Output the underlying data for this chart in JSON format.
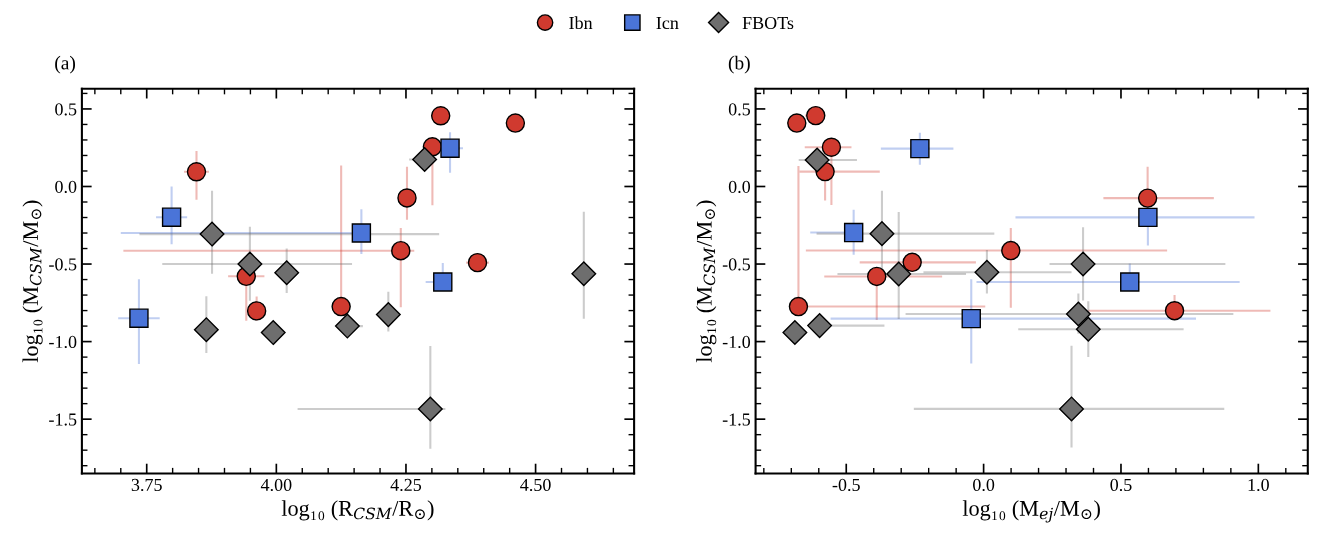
{
  "chart_data": [
    {
      "type": "scatter",
      "title": "(a)",
      "xlabel": "log₁₀ (R$_{CSM}$/R$_{⊙}$)",
      "ylabel": "log₁₀ (M$_{CSM}$/M$_{⊙}$)",
      "legend": "top",
      "grid": false,
      "xlim": [
        3.625,
        4.69
      ],
      "ylim": [
        -1.85,
        0.63
      ],
      "xticks": [
        {
          "value": 3.75,
          "label": "3.75"
        },
        {
          "value": 4.0,
          "label": "4.00"
        },
        {
          "value": 4.25,
          "label": "4.25"
        },
        {
          "value": 4.5,
          "label": "4.50"
        }
      ],
      "yticks": [
        {
          "value": 0.5,
          "label": "0.5"
        },
        {
          "value": 0.0,
          "label": "0.0"
        },
        {
          "value": -0.5,
          "label": "-0.5"
        },
        {
          "value": -1.0,
          "label": "-1.0"
        },
        {
          "value": -1.5,
          "label": "-1.5"
        }
      ],
      "series": [
        {
          "name": "Ibn",
          "color": "#d03a2f",
          "marker": "circle",
          "x": [
            3.846,
            4.317,
            4.461,
            4.301,
            4.252,
            4.24,
            4.388,
            3.942,
            3.962,
            4.125
          ],
          "values": [
            0.095,
            0.456,
            0.409,
            0.256,
            -0.074,
            -0.414,
            -0.491,
            -0.579,
            -0.802,
            -0.774
          ],
          "errors": [
            [
              -0.086,
              0.228
            ],
            null,
            null,
            [
              -0.121,
              0.3
            ],
            [
              -0.214,
              0.128
            ],
            [
              -0.779,
              -0.267
            ],
            null,
            [
              -0.865,
              -0.55
            ],
            [
              -0.865,
              -0.709
            ],
            [
              -0.774,
              0.135
            ]
          ],
          "xerrors": [
            [
              3.822,
              3.87
            ],
            null,
            null,
            null,
            null,
            [
              3.705,
              4.266
            ],
            [
              4.366,
              4.41
            ],
            [
              3.907,
              3.977
            ],
            null,
            null
          ]
        },
        {
          "name": "Icn",
          "color": "#4a74d8",
          "marker": "square",
          "x": [
            3.798,
            4.335,
            4.164,
            4.321,
            3.735
          ],
          "values": [
            -0.198,
            0.247,
            -0.3,
            -0.616,
            -0.849
          ],
          "errors": [
            [
              -0.372,
              0.0
            ],
            [
              0.088,
              0.349
            ],
            [
              -0.435,
              -0.147
            ],
            [
              -0.616,
              -0.493
            ],
            [
              -1.144,
              -0.598
            ]
          ],
          "xerrors": [
            [
              3.768,
              3.828
            ],
            [
              4.31,
              4.36
            ],
            [
              3.7,
              4.164
            ],
            [
              4.288,
              4.321
            ],
            [
              3.695,
              3.775
            ]
          ]
        },
        {
          "name": "FBOTs",
          "color": "#6e6e6e",
          "marker": "diamond",
          "x": [
            3.876,
            3.949,
            4.02,
            3.865,
            3.994,
            4.137,
            4.216,
            4.286,
            4.297,
            4.593
          ],
          "values": [
            -0.307,
            -0.5,
            -0.556,
            -0.923,
            -0.942,
            -0.9,
            -0.826,
            0.174,
            -1.435,
            -0.563
          ],
          "errors": [
            [
              -0.563,
              -0.028
            ],
            [
              -0.737,
              -0.26
            ],
            [
              -0.686,
              -0.4
            ],
            [
              -1.074,
              -0.707
            ],
            null,
            null,
            [
              -0.935,
              -0.679
            ],
            [
              0.1,
              0.174
            ],
            [
              -1.691,
              -1.028
            ],
            [
              -0.853,
              -0.163
            ]
          ],
          "xerrors": [
            [
              3.736,
              4.314
            ],
            [
              3.78,
              4.146
            ],
            null,
            null,
            null,
            [
              4.137,
              4.167
            ],
            null,
            [
              4.256,
              4.286
            ],
            [
              4.041,
              4.326
            ],
            null
          ]
        }
      ]
    },
    {
      "type": "scatter",
      "title": "(b)",
      "xlabel": "log₁₀ (M$_{ej}$/M$_{⊙}$)",
      "ylabel": "log₁₀ (M$_{CSM}$/M$_{⊙}$)",
      "grid": false,
      "xlim": [
        -0.83,
        1.18
      ],
      "ylim": [
        -1.85,
        0.63
      ],
      "xticks": [
        {
          "value": -0.5,
          "label": "-0.5"
        },
        {
          "value": 0.0,
          "label": "0.0"
        },
        {
          "value": 0.5,
          "label": "0.5"
        },
        {
          "value": 1.0,
          "label": "1.0"
        }
      ],
      "yticks": [
        {
          "value": 0.5,
          "label": "0.5"
        },
        {
          "value": 0.0,
          "label": "0.0"
        },
        {
          "value": -0.5,
          "label": "-0.5"
        },
        {
          "value": -1.0,
          "label": "-1.0"
        },
        {
          "value": -1.5,
          "label": "-1.5"
        }
      ],
      "series": [
        {
          "color": "#d03a2f",
          "marker": "circle",
          "x": [
            -0.68,
            -0.611,
            -0.554,
            -0.577,
            0.597,
            0.099,
            -0.26,
            -0.389,
            -0.674,
            0.695
          ],
          "values": [
            0.409,
            0.457,
            0.253,
            0.096,
            -0.075,
            -0.413,
            -0.489,
            -0.58,
            -0.774,
            -0.801
          ],
          "errors": [
            null,
            null,
            [
              -0.119,
              0.253
            ],
            [
              -0.091,
              0.096
            ],
            [
              -0.075,
              0.128
            ],
            [
              -0.781,
              -0.267
            ],
            null,
            [
              -0.861,
              -0.58
            ],
            [
              -0.774,
              0.132
            ],
            [
              -0.801,
              -0.7
            ]
          ],
          "xerrors": [
            null,
            [
              -0.65,
              -0.611
            ],
            [
              -0.651,
              -0.481
            ],
            [
              -0.67,
              -0.378
            ],
            [
              0.436,
              0.838
            ],
            [
              -0.647,
              0.668
            ],
            [
              -0.451,
              -0.028
            ],
            [
              -0.58,
              -0.151
            ],
            [
              -0.674,
              0.006
            ],
            [
              0.38,
              1.044
            ]
          ]
        },
        {
          "color": "#4a74d8",
          "marker": "square",
          "x": [
            -0.232,
            -0.473,
            0.598,
            0.532,
            -0.045
          ],
          "values": [
            0.244,
            -0.297,
            -0.199,
            -0.616,
            -0.852
          ],
          "errors": [
            [
              0.14,
              0.346
            ],
            [
              -0.44,
              -0.15
            ],
            [
              -0.38,
              -0.02
            ],
            [
              -0.616,
              -0.496
            ],
            [
              -1.142,
              -0.598
            ]
          ],
          "xerrors": [
            [
              -0.374,
              -0.11
            ],
            [
              -0.631,
              -0.473
            ],
            [
              0.116,
              0.986
            ],
            [
              -0.026,
              0.932
            ],
            [
              -0.557,
              0.773
            ]
          ]
        },
        {
          "color": "#6e6e6e",
          "marker": "diamond",
          "x": [
            -0.606,
            -0.37,
            -0.309,
            0.012,
            0.362,
            0.345,
            0.381,
            -0.687,
            -0.597,
            0.32
          ],
          "values": [
            0.171,
            -0.304,
            -0.564,
            -0.553,
            -0.5,
            -0.822,
            -0.92,
            -0.941,
            -0.897,
            -1.434
          ],
          "errors": [
            null,
            [
              -0.56,
              -0.027
            ],
            [
              -0.854,
              -0.164
            ],
            [
              -0.69,
              -0.41
            ],
            [
              -0.735,
              -0.263
            ],
            [
              -0.95,
              -0.69
            ],
            [
              -1.1,
              -0.74
            ],
            null,
            null,
            [
              -1.683,
              -1.026
            ]
          ],
          "xerrors": [
            [
              -0.673,
              -0.461
            ],
            [
              -0.608,
              0.039
            ],
            [
              -0.532,
              -0.064
            ],
            [
              -0.219,
              0.32
            ],
            [
              0.24,
              0.88
            ],
            [
              -0.284,
              0.909
            ],
            [
              0.126,
              0.728
            ],
            null,
            [
              -0.597,
              -0.361
            ],
            [
              -0.254,
              0.876
            ]
          ]
        }
      ]
    }
  ]
}
